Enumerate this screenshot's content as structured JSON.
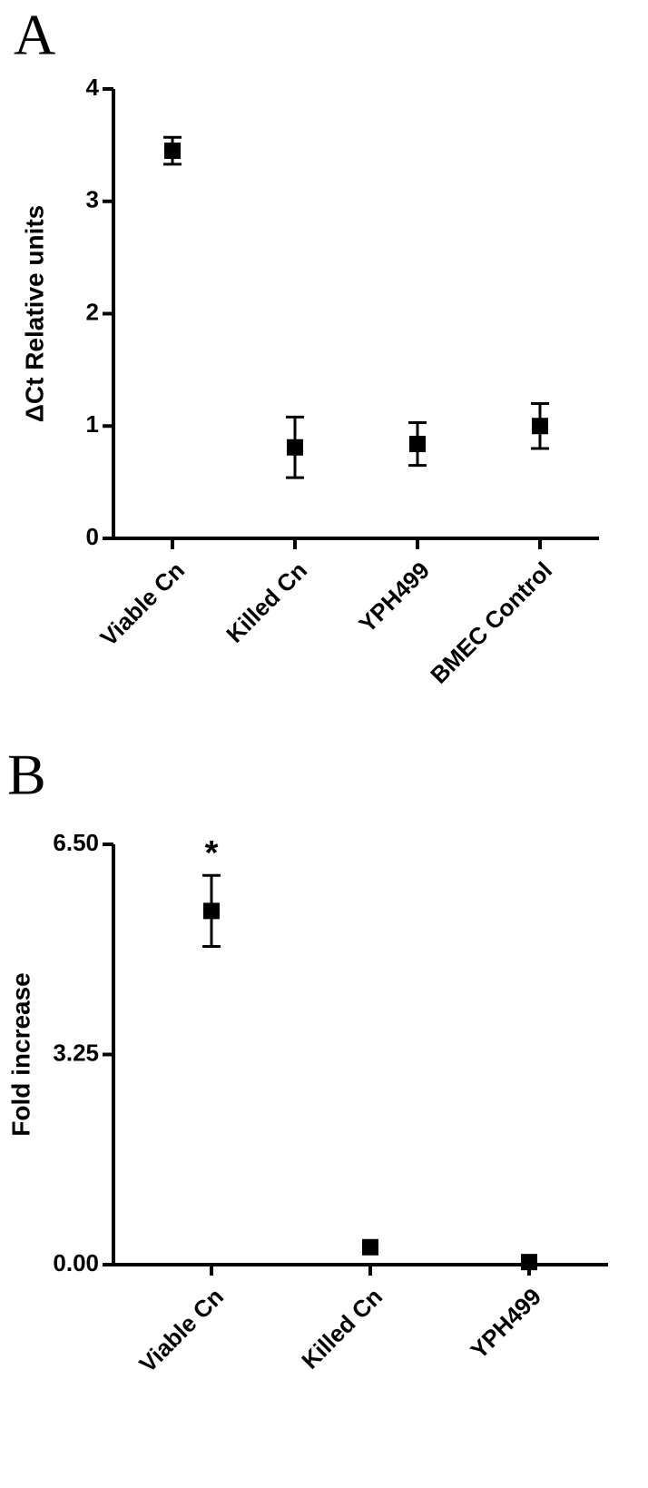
{
  "chart_data": [
    {
      "type": "scatter",
      "panel_label": "A",
      "y_label": "ΔCt Relative units",
      "categories": [
        "Viable Cn",
        "Killed Cn",
        "YPH499",
        "BMEC Control"
      ],
      "values": [
        3.45,
        0.81,
        0.84,
        1.0
      ],
      "errors": [
        0.12,
        0.27,
        0.19,
        0.2
      ],
      "color": "#000000",
      "ylim": [
        0,
        4
      ],
      "yticks": [
        0,
        1,
        2,
        3,
        4
      ]
    },
    {
      "type": "scatter",
      "panel_label": "B",
      "y_label": "Fold increase",
      "categories": [
        "Viable Cn",
        "Killed Cn",
        "YPH499"
      ],
      "values": [
        5.47,
        0.27,
        0.04
      ],
      "errors": [
        0.55,
        0,
        0
      ],
      "color": "#000000",
      "ylim": [
        0,
        6.5
      ],
      "yticks": [
        {
          "value": 0,
          "label": "0.00"
        },
        {
          "value": 3.25,
          "label": "3.25"
        },
        {
          "value": 6.5,
          "label": "6.50"
        }
      ],
      "annotation": "*"
    }
  ]
}
